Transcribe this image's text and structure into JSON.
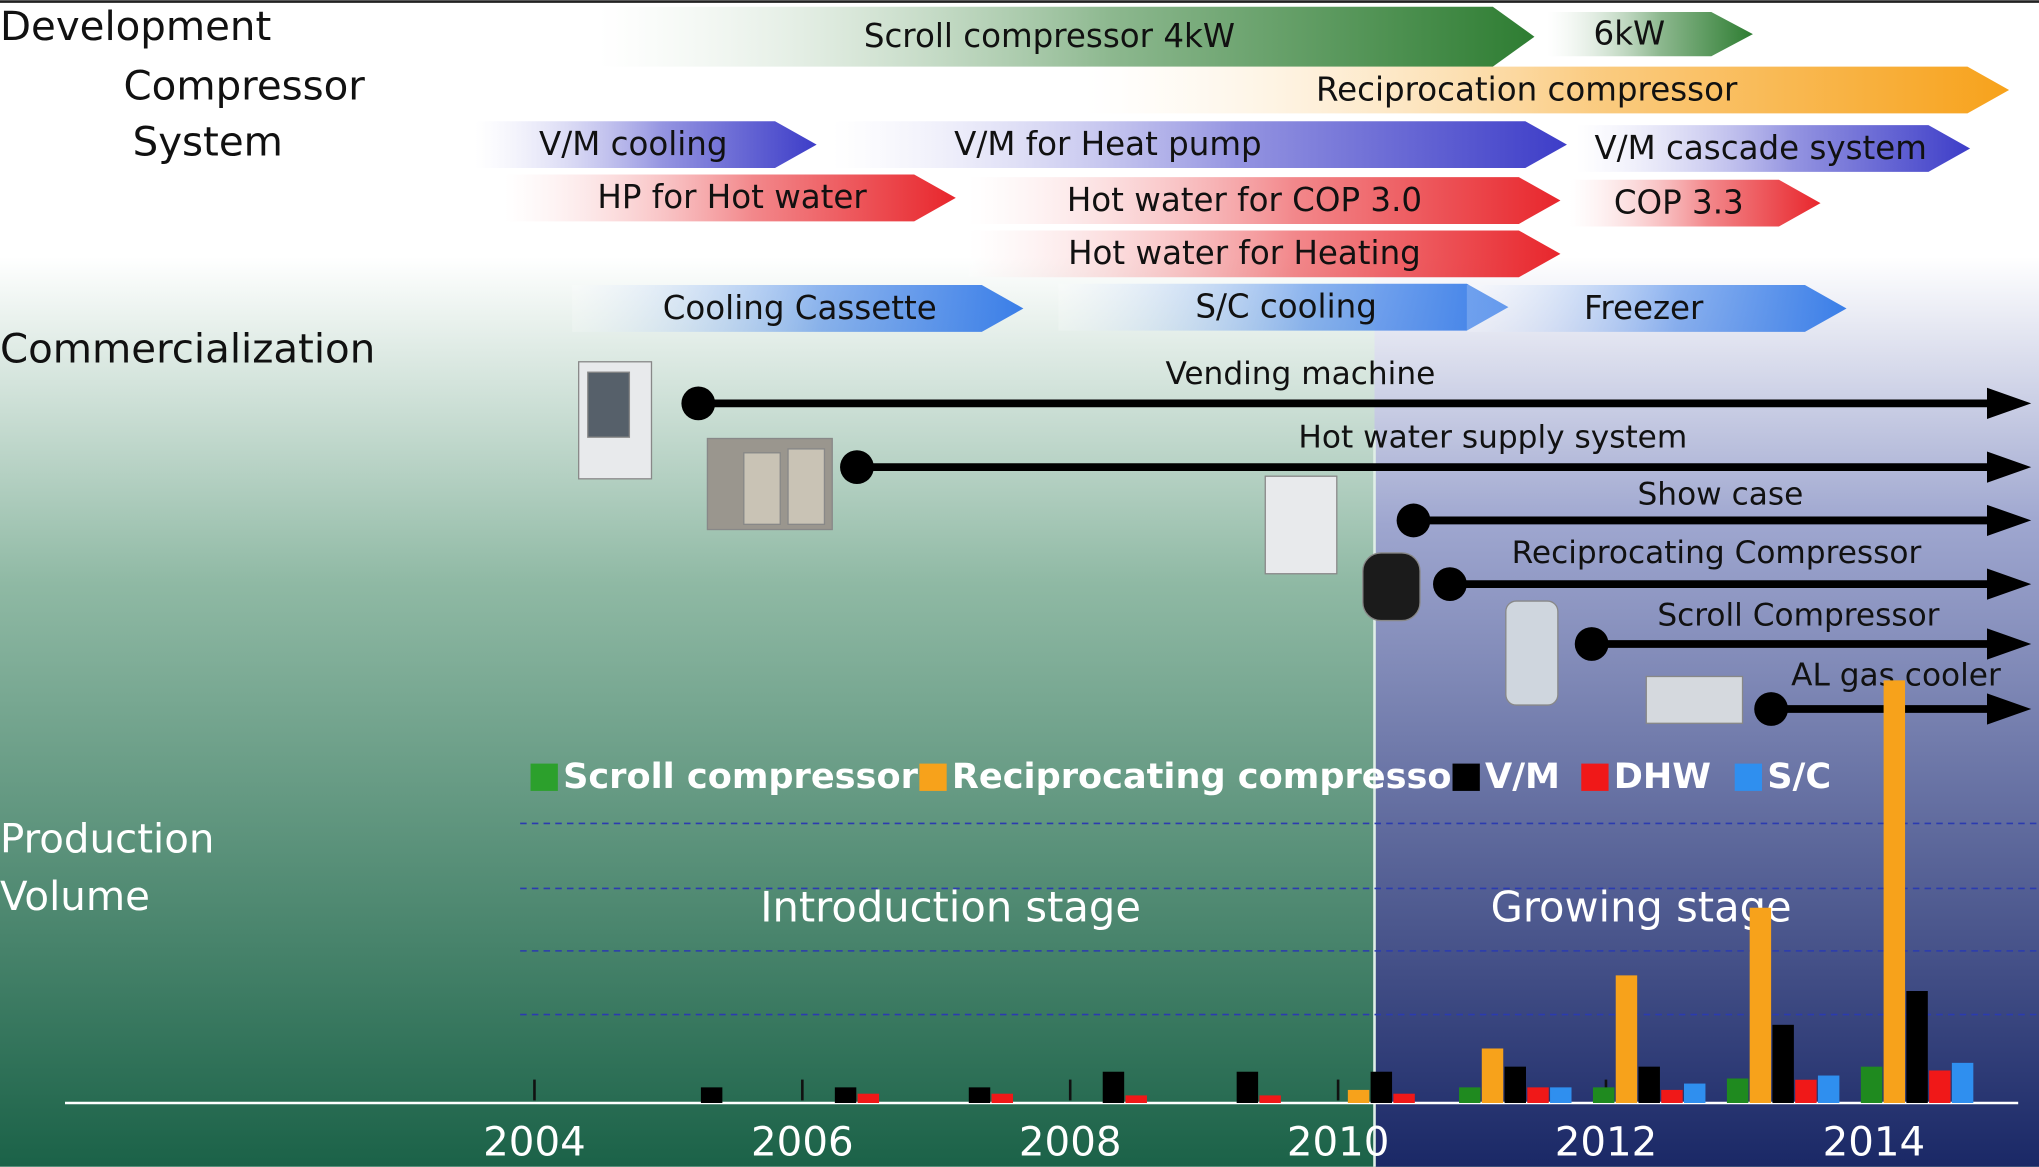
{
  "headings": {
    "development": "Development",
    "compressor": "Compressor",
    "system": "System",
    "commercialization": "Commercialization",
    "production": "Production",
    "volume": "Volume"
  },
  "development_arrows": [
    {
      "label": "Scroll compressor 4kW",
      "color": "#2e7d32"
    },
    {
      "label": "6kW",
      "color": "#2e7d32"
    },
    {
      "label": "Reciprocation compressor",
      "color": "#f7a21b"
    },
    {
      "label": "V/M cooling",
      "color": "#3d3dc8"
    },
    {
      "label": "V/M for Heat pump",
      "color": "#3d3dc8"
    },
    {
      "label": "V/M cascade system",
      "color": "#3d3dc8"
    },
    {
      "label": "HP for Hot water",
      "color": "#e8262c"
    },
    {
      "label": "Hot water for COP 3.0",
      "color": "#e8262c"
    },
    {
      "label": "COP 3.3",
      "color": "#e8262c"
    },
    {
      "label": "Hot water for Heating",
      "color": "#e8262c"
    },
    {
      "label": "Cooling Cassette",
      "color": "#3a7ee8"
    },
    {
      "label": "S/C cooling",
      "color": "#3a7ee8"
    },
    {
      "label": "Freezer",
      "color": "#3a7ee8"
    }
  ],
  "commercialization": [
    "Vending machine",
    "Hot water supply system",
    "Show case",
    "Reciprocating Compressor",
    "Scroll Compressor",
    "AL gas cooler"
  ],
  "stages": [
    "Introduction stage",
    "Growing stage"
  ],
  "chart_data": {
    "type": "bar",
    "categories": [
      "2004",
      null,
      "2006",
      null,
      "2008",
      null,
      "2010",
      null,
      "2012",
      null,
      "2014"
    ],
    "series": [
      {
        "name": "Scroll compressor",
        "color": "#1f8a1f",
        "values": [
          null,
          null,
          null,
          null,
          null,
          null,
          null,
          3.7,
          3.7,
          5.8,
          8.6
        ]
      },
      {
        "name": "Reciprocating compressor",
        "color": "#f7a21b",
        "values": [
          null,
          null,
          null,
          null,
          null,
          null,
          3.1,
          12.9,
          30.2,
          46.2,
          100
        ]
      },
      {
        "name": "V/M",
        "color": "#000000",
        "values": [
          null,
          3.7,
          3.7,
          3.7,
          7.4,
          7.4,
          7.4,
          8.6,
          8.6,
          18.5,
          26.5
        ]
      },
      {
        "name": "DHW",
        "color": "#f01818",
        "values": [
          null,
          null,
          2.2,
          2.2,
          1.8,
          1.8,
          2.2,
          3.7,
          3.1,
          5.5,
          7.7
        ]
      },
      {
        "name": "S/C",
        "color": "#2f8fef",
        "values": [
          null,
          null,
          null,
          null,
          null,
          null,
          null,
          3.7,
          4.6,
          6.5,
          9.5
        ]
      }
    ],
    "ylim": [
      0,
      100
    ],
    "legend": "top"
  }
}
